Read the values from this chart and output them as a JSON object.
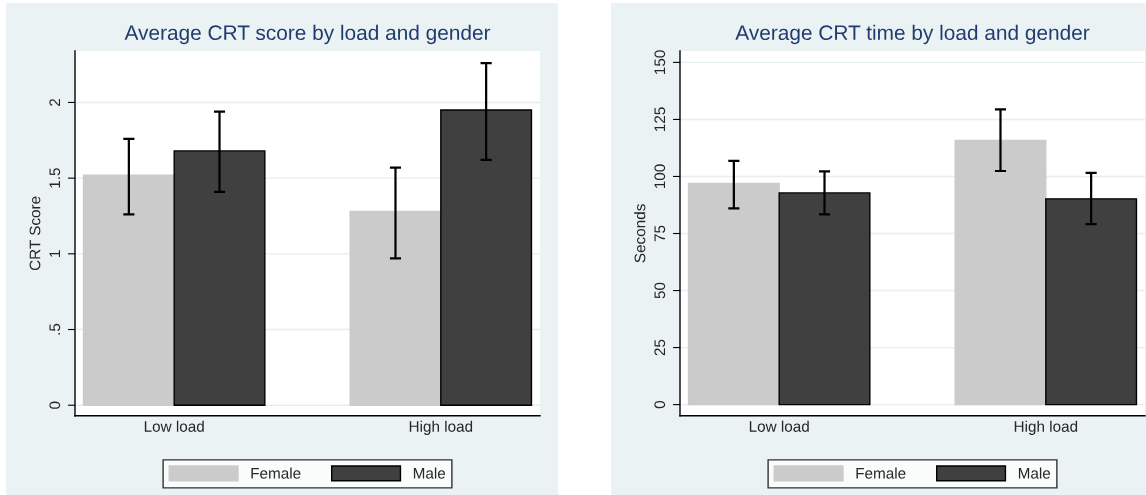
{
  "chart_data": [
    {
      "type": "bar",
      "title": "Average CRT score by load and gender",
      "ylabel": "CRT Score",
      "categories": [
        "Low load",
        "High load"
      ],
      "series": [
        {
          "name": "Female",
          "color": "#cbcbcb",
          "values": [
            1.52,
            1.28
          ],
          "errors": [
            [
              1.26,
              1.76
            ],
            [
              0.97,
              1.57
            ]
          ]
        },
        {
          "name": "Male",
          "color": "#404040",
          "values": [
            1.68,
            1.95
          ],
          "errors": [
            [
              1.41,
              1.94
            ],
            [
              1.62,
              2.26
            ]
          ]
        }
      ],
      "ylim": [
        -0.07,
        2.34
      ],
      "yticks": [
        0,
        {
          "value": 0.5,
          "label": ".5"
        },
        1,
        1.5,
        2
      ],
      "grid": "y",
      "legend": "bottom"
    },
    {
      "type": "bar",
      "title": "Average CRT time by load and gender",
      "ylabel": "Seconds",
      "categories": [
        "Low load",
        "High load"
      ],
      "series": [
        {
          "name": "Female",
          "color": "#cbcbcb",
          "values": [
            96.9,
            115.8
          ],
          "errors": [
            [
              86.0,
              106.8
            ],
            [
              102.4,
              129.4
            ]
          ]
        },
        {
          "name": "Male",
          "color": "#404040",
          "values": [
            92.8,
            90.2
          ],
          "errors": [
            [
              83.4,
              102.2
            ],
            [
              79.1,
              101.6
            ]
          ]
        }
      ],
      "ylim": [
        -4.9,
        155
      ],
      "yticks": [
        0,
        25,
        50,
        75,
        100,
        125,
        150
      ],
      "grid": "y",
      "legend": "bottom"
    }
  ]
}
